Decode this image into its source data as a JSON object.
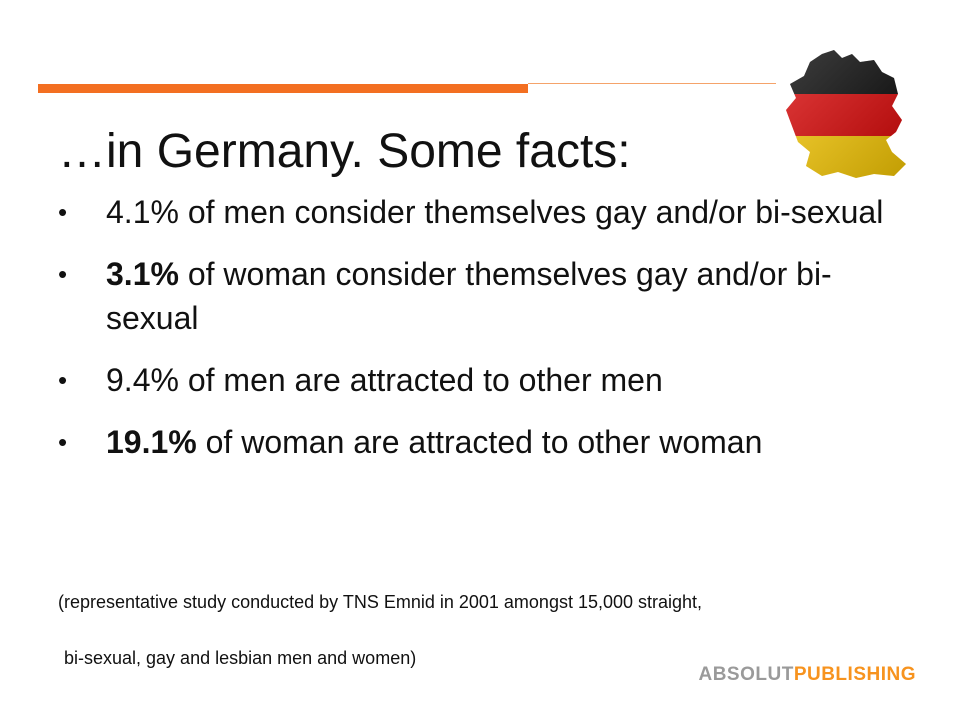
{
  "slide": {
    "title": "…in Germany. Some facts:",
    "bullets": [
      {
        "bold": "",
        "text": "4.1% of men consider themselves gay and/or bi-sexual"
      },
      {
        "bold": "3.1%",
        "text": " of woman consider themselves gay and/or bi-sexual"
      },
      {
        "bold": "",
        "text": "9.4% of men are attracted to other men"
      },
      {
        "bold": "19.1%",
        "text": " of woman are attracted to other woman"
      }
    ],
    "bullet_symbol": "•",
    "note_line1": "(representative study conducted  by TNS Emnid in 2001 amongst 15,000 straight,",
    "note_line2": "bi-sexual, gay and lesbian men and women)",
    "brand_part1": "ABSOLUT",
    "brand_part2": "PUBLISHING"
  },
  "colors": {
    "accent": "#f36f21",
    "brand_gray": "#9a9a9a",
    "brand_orange": "#f7931e",
    "flag_black": "#000000",
    "flag_red": "#dd0000",
    "flag_gold": "#ffce00"
  },
  "icons": {
    "flag": "germany-flag-map-icon"
  }
}
